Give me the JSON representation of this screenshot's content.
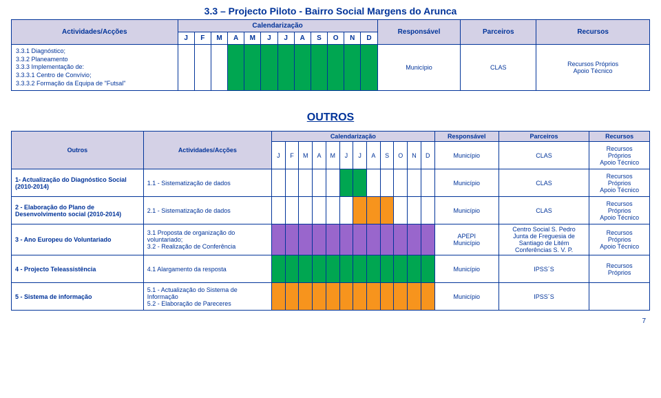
{
  "section_title": "3.3 – Projecto Piloto - Bairro Social Margens do Arunca",
  "colors": {
    "accent": "#003399",
    "header_bg": "#d4d1e6",
    "green": "#00a651",
    "orange": "#f7941d",
    "purple": "#9966cc",
    "white": "#ffffff"
  },
  "table1": {
    "headers": {
      "actividades": "Actividades/Acções",
      "calendarizacao": "Calendarização",
      "responsavel": "Responsável",
      "parceiros": "Parceiros",
      "recursos": "Recursos"
    },
    "months": [
      "J",
      "F",
      "M",
      "A",
      "M",
      "J",
      "J",
      "A",
      "S",
      "O",
      "N",
      "D"
    ],
    "activity_lines": "3.3.1 Diagnóstico;\n3.3.2 Planeamento\n3.3.3 Implementação de:\n3.3.3.1 Centro de Convívio;\n3.3.3.2 Formação da Equipa de \"Futsal\"",
    "month_fill": [
      false,
      false,
      false,
      true,
      true,
      true,
      true,
      true,
      true,
      true,
      true,
      true
    ],
    "responsavel": "Município",
    "parceiros": "CLAS",
    "recursos": "Recursos Próprios\nApoio Técnico"
  },
  "outros_title": "OUTROS",
  "table2": {
    "headers": {
      "outros": "Outros",
      "actividades": "Actividades/Acções",
      "calendarizacao": "Calendarização",
      "responsavel": "Responsável",
      "parceiros": "Parceiros",
      "recursos": "Recursos"
    },
    "months": [
      "J",
      "F",
      "M",
      "A",
      "M",
      "J",
      "J",
      "A",
      "S",
      "O",
      "N",
      "D"
    ],
    "rows": [
      {
        "outros": "",
        "act": "",
        "fill": [
          false,
          false,
          false,
          false,
          false,
          false,
          false,
          false,
          false,
          false,
          false,
          false
        ],
        "fill_color": "",
        "resp": "Município",
        "parc": "CLAS",
        "rec": "Recursos\nPróprios\nApoio Técnico"
      },
      {
        "outros": "1- Actualização do Diagnóstico Social (2010-2014)",
        "act": "1.1 - Sistematização de dados",
        "fill": [
          false,
          false,
          false,
          false,
          false,
          true,
          true,
          false,
          false,
          false,
          false,
          false
        ],
        "fill_color": "green",
        "resp": "Município",
        "parc": "CLAS",
        "rec": "Recursos\nPróprios\nApoio Técnico"
      },
      {
        "outros": "2 - Elaboração do Plano de Desenvolvimento social (2010-2014)",
        "act": "2.1 - Sistematização de dados",
        "fill": [
          false,
          false,
          false,
          false,
          false,
          false,
          true,
          true,
          true,
          false,
          false,
          false
        ],
        "fill_color": "orange",
        "resp": "Município",
        "parc": "CLAS",
        "rec": "Recursos\nPróprios\nApoio Técnico"
      },
      {
        "outros": "3 - Ano Europeu do Voluntariado",
        "act": "3.1 Proposta de organização do voluntariado;\n3.2 - Realização de Conferência",
        "fill": [
          true,
          true,
          true,
          true,
          true,
          true,
          true,
          true,
          true,
          true,
          true,
          true
        ],
        "fill_color": "purple",
        "resp": "APEPI\nMunicípio",
        "parc": "Centro Social S. Pedro\nJunta de Freguesia de Santiago de Litém\nConferências S. V. P.",
        "rec": "Recursos\nPróprios\nApoio Técnico"
      },
      {
        "outros": "4 - Projecto Teleassistência",
        "act": "4.1 Alargamento da resposta",
        "fill": [
          true,
          true,
          true,
          true,
          true,
          true,
          true,
          true,
          true,
          true,
          true,
          true
        ],
        "fill_color": "green",
        "resp": "Município",
        "parc": "IPSS´S",
        "rec": "Recursos\nPróprios"
      },
      {
        "outros": "5 - Sistema de informação",
        "act": "5.1 - Actualização do Sistema de Informação\n5.2 - Elaboração de Pareceres",
        "fill": [
          true,
          true,
          true,
          true,
          true,
          true,
          true,
          true,
          true,
          true,
          true,
          true
        ],
        "fill_color": "orange",
        "resp": "Município",
        "parc": "IPSS´S",
        "rec": ""
      }
    ]
  },
  "page_number": "7"
}
